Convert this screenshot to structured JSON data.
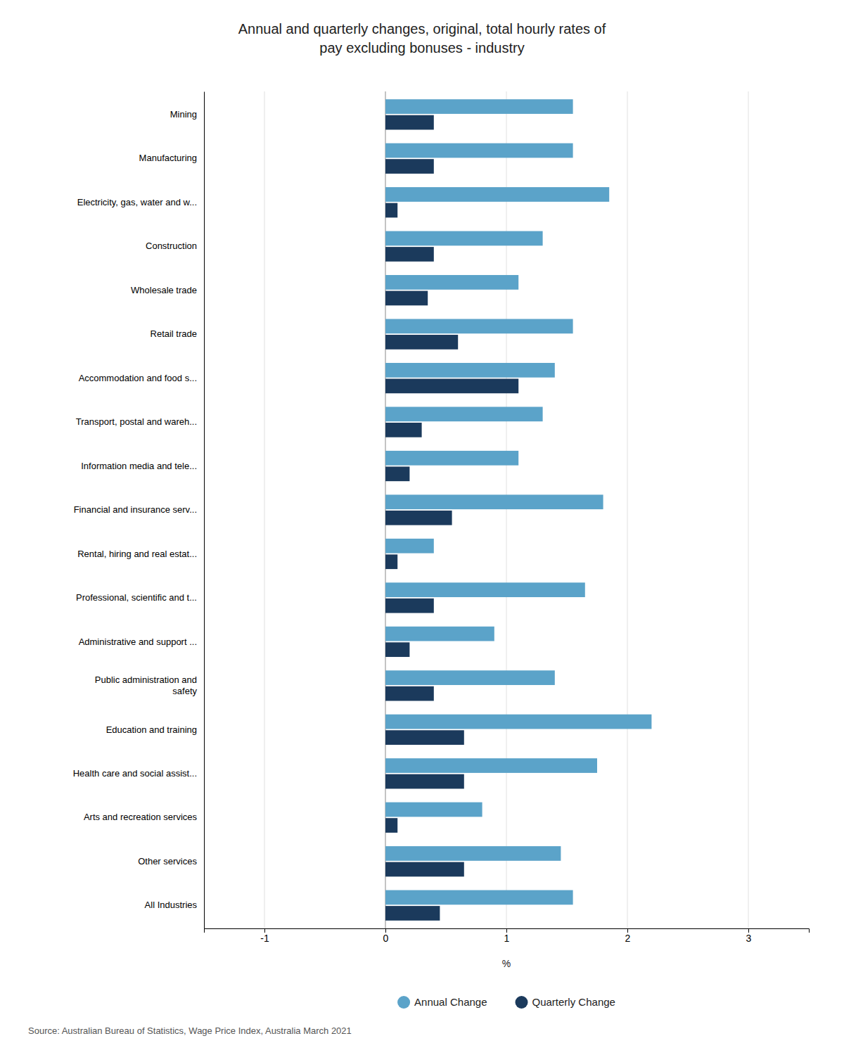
{
  "chart_data": {
    "type": "bar",
    "orientation": "horizontal",
    "title": "Annual and quarterly changes, original, total hourly rates of\npay excluding bonuses - industry",
    "categories": [
      "Mining",
      "Manufacturing",
      "Electricity, gas, water and w...",
      "Construction",
      "Wholesale trade",
      "Retail trade",
      "Accommodation and food s...",
      "Transport, postal and wareh...",
      "Information media and tele...",
      "Financial and insurance serv...",
      "Rental, hiring and real estat...",
      "Professional, scientific and t...",
      "Administrative and support ...",
      "Public administration and\nsafety",
      "Education and training",
      "Health care and social assist...",
      "Arts and recreation services",
      "Other services",
      "All Industries"
    ],
    "series": [
      {
        "name": "Annual Change",
        "color": "#5ba3c9",
        "values": [
          1.55,
          1.55,
          1.85,
          1.3,
          1.1,
          1.55,
          1.4,
          1.3,
          1.1,
          1.8,
          0.4,
          1.65,
          0.9,
          1.4,
          2.2,
          1.75,
          0.8,
          1.45,
          1.55
        ]
      },
      {
        "name": "Quarterly Change",
        "color": "#1b3a5c",
        "values": [
          0.4,
          0.4,
          0.1,
          0.4,
          0.35,
          0.6,
          1.1,
          0.3,
          0.2,
          0.55,
          0.1,
          0.4,
          0.2,
          0.4,
          0.65,
          0.65,
          0.1,
          0.65,
          0.45
        ]
      }
    ],
    "xlim": [
      -1.5,
      3.5
    ],
    "xticks": [
      -1,
      0,
      1,
      2,
      3
    ],
    "xlabel": "%",
    "grid": true,
    "legend": "bottom",
    "source": "Source: Australian Bureau of Statistics, Wage Price Index, Australia March 2021"
  }
}
